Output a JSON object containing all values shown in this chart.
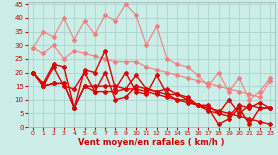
{
  "background_color": "#cceee8",
  "grid_color": "#aad4ce",
  "xlabel": "Vent moyen/en rafales ( km/h )",
  "xlim": [
    -0.5,
    23.5
  ],
  "ylim": [
    0,
    46
  ],
  "yticks": [
    0,
    5,
    10,
    15,
    20,
    25,
    30,
    35,
    40,
    45
  ],
  "xticks": [
    0,
    1,
    2,
    3,
    4,
    5,
    6,
    7,
    8,
    9,
    10,
    11,
    12,
    13,
    14,
    15,
    16,
    17,
    18,
    19,
    20,
    21,
    22,
    23
  ],
  "series_light": [
    {
      "x": [
        0,
        1,
        2,
        3,
        4,
        5,
        6,
        7,
        8,
        9,
        10,
        11,
        12,
        13,
        14,
        15,
        16,
        17,
        18,
        19,
        20,
        21,
        22,
        23
      ],
      "y": [
        29,
        35,
        33,
        40,
        32,
        39,
        34,
        41,
        39,
        45,
        41,
        30,
        37,
        25,
        23,
        22,
        19,
        15,
        20,
        13,
        18,
        10,
        13,
        18
      ]
    },
    {
      "x": [
        0,
        1,
        2,
        3,
        4,
        5,
        6,
        7,
        8,
        9,
        10,
        11,
        12,
        13,
        14,
        15,
        16,
        17,
        18,
        19,
        20,
        21,
        22,
        23
      ],
      "y": [
        29,
        27,
        30,
        25,
        28,
        27,
        26,
        25,
        24,
        24,
        24,
        22,
        21,
        20,
        19,
        18,
        17,
        16,
        15,
        14,
        13,
        12,
        11,
        17
      ]
    }
  ],
  "series_dark": [
    {
      "x": [
        0,
        1,
        2,
        3,
        4,
        5,
        6,
        7,
        8,
        9,
        10,
        11,
        12,
        13,
        14,
        15,
        16,
        17,
        18,
        19,
        20,
        21,
        22,
        23
      ],
      "y": [
        20,
        16,
        23,
        22,
        7,
        21,
        20,
        28,
        14,
        20,
        13,
        12,
        19,
        12,
        10,
        10,
        8,
        6,
        5,
        4,
        8,
        7,
        9,
        7
      ]
    },
    {
      "x": [
        0,
        1,
        2,
        3,
        4,
        5,
        6,
        7,
        8,
        9,
        10,
        11,
        12,
        13,
        14,
        15,
        16,
        17,
        18,
        19,
        20,
        21,
        22,
        23
      ],
      "y": [
        20,
        15,
        16,
        16,
        7,
        15,
        15,
        15,
        15,
        14,
        14,
        13,
        12,
        11,
        10,
        9,
        8,
        7,
        6,
        5,
        4,
        3,
        2,
        1
      ]
    },
    {
      "x": [
        0,
        1,
        2,
        3,
        4,
        5,
        6,
        7,
        8,
        9,
        10,
        11,
        12,
        13,
        14,
        15,
        16,
        17,
        18,
        19,
        20,
        21,
        22,
        23
      ],
      "y": [
        20,
        15,
        16,
        16,
        7,
        15,
        13,
        13,
        13,
        14,
        19,
        14,
        13,
        12,
        12,
        10,
        8,
        8,
        5,
        10,
        5,
        8,
        7,
        7
      ]
    },
    {
      "x": [
        0,
        1,
        2,
        3,
        4,
        5,
        6,
        7,
        8,
        9,
        10,
        11,
        12,
        13,
        14,
        15,
        16,
        17,
        18,
        19,
        20,
        21,
        22,
        23
      ],
      "y": [
        20,
        15,
        22,
        15,
        14,
        20,
        13,
        20,
        10,
        11,
        15,
        14,
        13,
        14,
        12,
        11,
        8,
        7,
        1,
        3,
        7,
        1,
        7,
        7
      ]
    }
  ],
  "color_light": "#f08080",
  "color_dark": "#dd0000",
  "marker_size": 2,
  "linewidth_light": 0.8,
  "linewidth_dark": 1.0,
  "tick_fontsize": 5,
  "xlabel_fontsize": 6,
  "xlabel_color": "#cc0000"
}
